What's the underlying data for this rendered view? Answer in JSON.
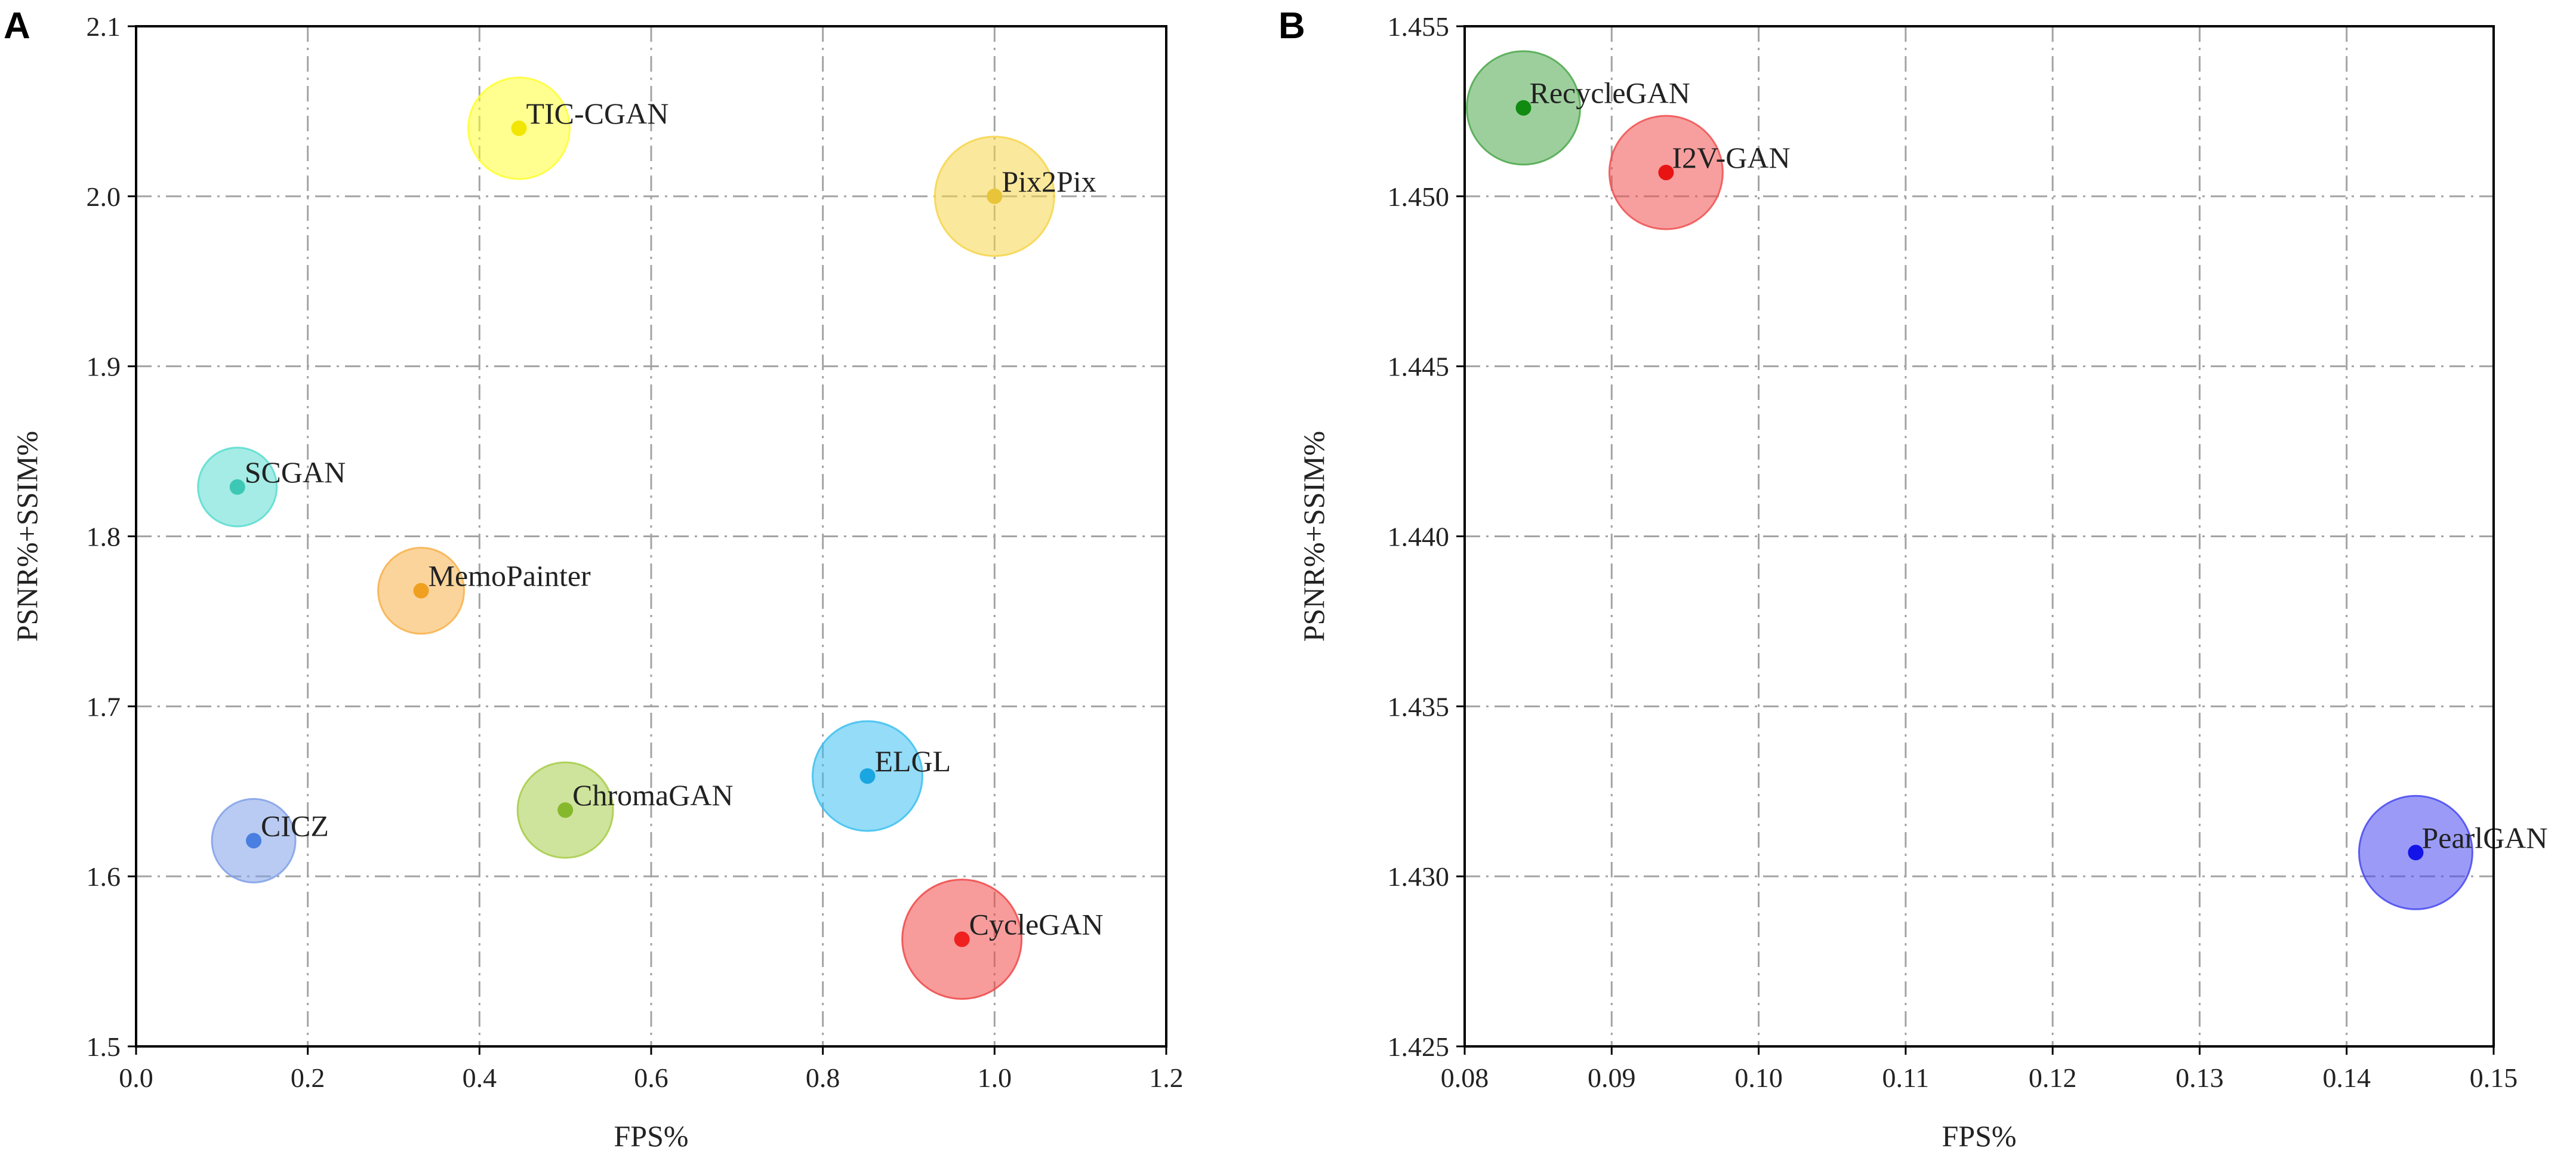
{
  "chart_data": [
    {
      "panel": "A",
      "type": "scatter",
      "xlabel": "FPS%",
      "ylabel": "PSNR%+SSIM%",
      "xlim": [
        0.0,
        1.2
      ],
      "ylim": [
        1.5,
        2.1
      ],
      "xticks": [
        0.0,
        0.2,
        0.4,
        0.6,
        0.8,
        1.0,
        1.2
      ],
      "yticks": [
        1.5,
        1.6,
        1.7,
        1.8,
        1.9,
        2.0,
        2.1
      ],
      "xtick_labels": [
        "0.0",
        "0.2",
        "0.4",
        "0.6",
        "0.8",
        "1.0",
        "1.2"
      ],
      "ytick_labels": [
        "1.5",
        "1.6",
        "1.7",
        "1.8",
        "1.9",
        "2.0",
        "2.1"
      ],
      "grid": true,
      "points": [
        {
          "label": "TIC-CGAN",
          "x": 0.446,
          "y": 2.04,
          "size": 0.85,
          "dot_color": "#f2e600",
          "bubble_color": "#ffff33"
        },
        {
          "label": "Pix2Pix",
          "x": 1.0,
          "y": 2.0,
          "size": 1.0,
          "dot_color": "#e8c43a",
          "bubble_color": "#f6d54a"
        },
        {
          "label": "SCGAN",
          "x": 0.118,
          "y": 1.829,
          "size": 0.66,
          "dot_color": "#3cc8b4",
          "bubble_color": "#59dcd0"
        },
        {
          "label": "MemoPainter",
          "x": 0.332,
          "y": 1.768,
          "size": 0.72,
          "dot_color": "#f0a020",
          "bubble_color": "#f7b04a"
        },
        {
          "label": "CICZ",
          "x": 0.137,
          "y": 1.621,
          "size": 0.7,
          "dot_color": "#4a7ee0",
          "bubble_color": "#80a0e8"
        },
        {
          "label": "ChromaGAN",
          "x": 0.5,
          "y": 1.639,
          "size": 0.8,
          "dot_color": "#86b82c",
          "bubble_color": "#a6cc48"
        },
        {
          "label": "ELGL",
          "x": 0.852,
          "y": 1.659,
          "size": 0.92,
          "dot_color": "#1aa6e0",
          "bubble_color": "#3cc0f0"
        },
        {
          "label": "CycleGAN",
          "x": 0.962,
          "y": 1.563,
          "size": 1.0,
          "dot_color": "#f02020",
          "bubble_color": "#f04848"
        }
      ]
    },
    {
      "panel": "B",
      "type": "scatter",
      "xlabel": "FPS%",
      "ylabel": "PSNR%+SSIM%",
      "xlim": [
        0.08,
        0.15
      ],
      "ylim": [
        1.425,
        1.455
      ],
      "xticks": [
        0.08,
        0.09,
        0.1,
        0.11,
        0.12,
        0.13,
        0.14,
        0.15
      ],
      "yticks": [
        1.425,
        1.43,
        1.435,
        1.44,
        1.445,
        1.45,
        1.455
      ],
      "xtick_labels": [
        "0.08",
        "0.09",
        "0.10",
        "0.11",
        "0.12",
        "0.13",
        "0.14",
        "0.15"
      ],
      "ytick_labels": [
        "1.425",
        "1.430",
        "1.435",
        "1.440",
        "1.445",
        "1.450",
        "1.455"
      ],
      "grid": true,
      "points": [
        {
          "label": "RecycleGAN",
          "x": 0.084,
          "y": 1.4526,
          "size": 1.0,
          "dot_color": "#108a10",
          "bubble_color": "#4ca84c"
        },
        {
          "label": "I2V-GAN",
          "x": 0.0937,
          "y": 1.4507,
          "size": 1.0,
          "dot_color": "#e81414",
          "bubble_color": "#f05050"
        },
        {
          "label": "PearlGAN",
          "x": 0.1447,
          "y": 1.4307,
          "size": 1.0,
          "dot_color": "#1414e8",
          "bubble_color": "#4848f0"
        }
      ]
    }
  ]
}
